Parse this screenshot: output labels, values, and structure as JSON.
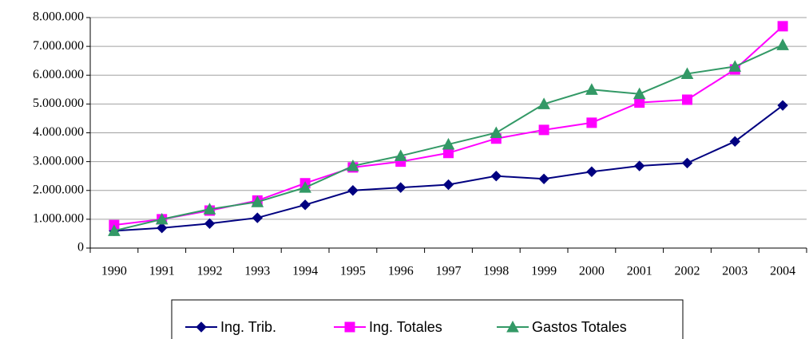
{
  "chart_data": {
    "type": "line",
    "categories": [
      "1990",
      "1991",
      "1992",
      "1993",
      "1994",
      "1995",
      "1996",
      "1997",
      "1998",
      "1999",
      "2000",
      "2001",
      "2002",
      "2003",
      "2004"
    ],
    "series": [
      {
        "name": "Ing. Trib.",
        "color": "#000080",
        "marker": "diamond",
        "values": [
          600000,
          700000,
          850000,
          1050000,
          1500000,
          2000000,
          2100000,
          2200000,
          2500000,
          2400000,
          2650000,
          2850000,
          2950000,
          3700000,
          4950000
        ]
      },
      {
        "name": "Ing. Totales",
        "color": "#ff00ff",
        "marker": "square",
        "values": [
          800000,
          1000000,
          1300000,
          1650000,
          2250000,
          2800000,
          3000000,
          3300000,
          3800000,
          4100000,
          4350000,
          5050000,
          5150000,
          6200000,
          7700000
        ]
      },
      {
        "name": "Gastos Totales",
        "color": "#339966",
        "marker": "triangle",
        "values": [
          600000,
          1000000,
          1350000,
          1600000,
          2100000,
          2850000,
          3200000,
          3600000,
          4000000,
          5000000,
          5500000,
          5350000,
          6050000,
          6300000,
          7050000
        ]
      }
    ],
    "ylim": [
      0,
      8000000
    ],
    "yticks": [
      0,
      {
        "value": 1000000,
        "label": "1.000.000"
      },
      {
        "value": 2000000,
        "label": "2.000.000"
      },
      {
        "value": 3000000,
        "label": "3.000.000"
      },
      {
        "value": 4000000,
        "label": "4.000.000"
      },
      {
        "value": 5000000,
        "label": "5.000.000"
      },
      {
        "value": 6000000,
        "label": "6.000.000"
      },
      {
        "value": 7000000,
        "label": "7.000.000"
      },
      {
        "value": 8000000,
        "label": "8.000.000"
      }
    ],
    "grid": true,
    "legend": "bottom"
  }
}
